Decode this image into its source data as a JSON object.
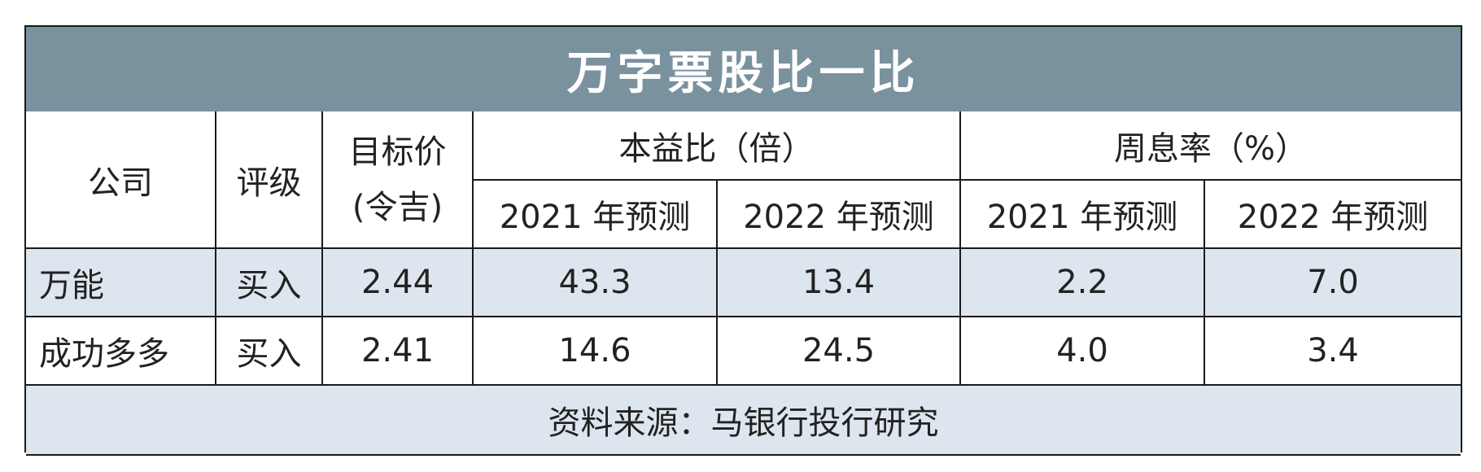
{
  "title": "万字票股比一比",
  "headers": {
    "company": "公司",
    "rating": "评级",
    "target_price_line1": "目标价",
    "target_price_line2": "(令吉)",
    "pe_group": "本益比（倍）",
    "yield_group": "周息率（%）",
    "pe_2021": "2021 年预测",
    "pe_2022": "2022 年预测",
    "yield_2021": "2021 年预测",
    "yield_2022": "2022 年预测"
  },
  "rows": [
    {
      "company": "万能",
      "rating": "买入",
      "target_price": "2.44",
      "pe_2021": "43.3",
      "pe_2022": "13.4",
      "yield_2021": "2.2",
      "yield_2022": "7.0"
    },
    {
      "company": "成功多多",
      "rating": "买入",
      "target_price": "2.41",
      "pe_2021": "14.6",
      "pe_2022": "24.5",
      "yield_2021": "4.0",
      "yield_2022": "3.4"
    }
  ],
  "source": "资料来源：马银行投行研究",
  "colors": {
    "title_bar": "#7a919e",
    "row_shade": "#dde6ee"
  }
}
